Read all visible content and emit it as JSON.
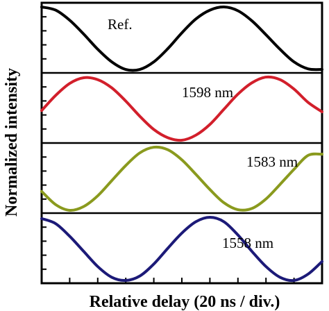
{
  "chart_data": {
    "type": "line",
    "xlabel": "Relative delay (20 ns / div.)",
    "ylabel": "Normalized intensity",
    "xlim": [
      0,
      10
    ],
    "ylim": [
      0,
      1
    ],
    "x_divisions": 10,
    "y_divisions_per_panel": 5,
    "stacked_panels": true,
    "series": [
      {
        "name": "Ref.",
        "color": "#000000",
        "x": [
          0,
          0.5,
          1,
          1.5,
          2,
          2.5,
          3,
          3.5,
          4,
          4.5,
          5,
          5.5,
          6,
          6.5,
          7,
          7.5,
          8,
          8.5,
          9,
          9.5,
          10
        ],
        "y": [
          1.0,
          0.95,
          0.79,
          0.57,
          0.33,
          0.13,
          0.01,
          0.01,
          0.13,
          0.34,
          0.59,
          0.81,
          0.95,
          1.0,
          0.94,
          0.78,
          0.56,
          0.33,
          0.13,
          0.02,
          0.01
        ]
      },
      {
        "name": "1598 nm",
        "color": "#d21f2b",
        "x": [
          0,
          0.5,
          1,
          1.5,
          2,
          2.5,
          3,
          3.5,
          4,
          4.5,
          5,
          5.5,
          6,
          6.5,
          7,
          7.5,
          8,
          8.5,
          9,
          9.5,
          10
        ],
        "y": [
          0.47,
          0.71,
          0.9,
          0.99,
          0.96,
          0.83,
          0.62,
          0.38,
          0.17,
          0.04,
          0.0,
          0.08,
          0.25,
          0.49,
          0.73,
          0.91,
          1.0,
          0.96,
          0.81,
          0.6,
          0.45
        ]
      },
      {
        "name": "1583 nm",
        "color": "#8a9a1e",
        "x": [
          0,
          0.5,
          1,
          1.5,
          2,
          2.5,
          3,
          3.5,
          4,
          4.5,
          5,
          5.5,
          6,
          6.5,
          7,
          7.5,
          8,
          8.5,
          9,
          9.5,
          10
        ],
        "y": [
          0.3,
          0.09,
          0.0,
          0.06,
          0.23,
          0.47,
          0.71,
          0.91,
          1.0,
          0.96,
          0.8,
          0.57,
          0.33,
          0.12,
          0.01,
          0.03,
          0.18,
          0.41,
          0.65,
          0.87,
          0.89
        ]
      },
      {
        "name": "1558 nm",
        "color": "#1c1a78",
        "x": [
          0,
          0.5,
          1,
          1.5,
          2,
          2.5,
          3,
          3.5,
          4,
          4.5,
          5,
          5.5,
          6,
          6.5,
          7,
          7.5,
          8,
          8.5,
          9,
          9.5,
          10
        ],
        "y": [
          0.98,
          0.9,
          0.7,
          0.46,
          0.22,
          0.05,
          0.0,
          0.07,
          0.26,
          0.51,
          0.75,
          0.93,
          1.0,
          0.93,
          0.72,
          0.46,
          0.22,
          0.05,
          0.0,
          0.1,
          0.3
        ]
      }
    ]
  }
}
